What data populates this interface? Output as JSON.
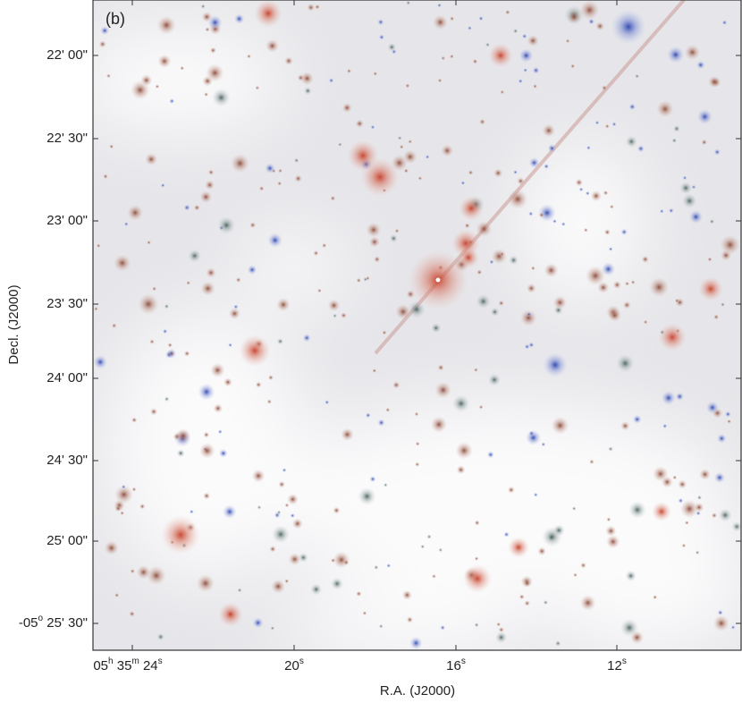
{
  "panel_label": "(b)",
  "y_axis_title": "Decl. (J2000)",
  "x_axis_title": "R.A. (J2000)",
  "y_tick_labels": [
    "22' 00\"",
    "22' 30\"",
    "23' 00\"",
    "23' 30\"",
    "24' 00\"",
    "24' 30\"",
    "25' 00\"",
    [
      "-05",
      "o",
      " 25' 30\""
    ]
  ],
  "x_tick_labels": [
    [
      "05",
      "h",
      " 35",
      "m",
      " 24",
      "s"
    ],
    [
      "20",
      "s"
    ],
    [
      "16",
      "s"
    ],
    [
      "12",
      "s"
    ]
  ]
}
